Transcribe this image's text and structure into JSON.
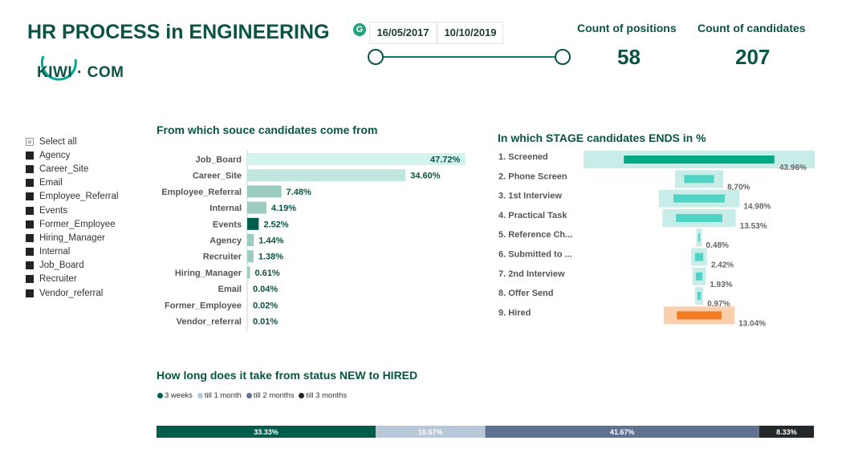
{
  "header": {
    "title": "HR PROCESS in ENGINEERING",
    "logo_text": "KIWI · COM",
    "grammarly_glyph": "G"
  },
  "date_filter": {
    "start": "16/05/2017",
    "end": "10/10/2019"
  },
  "kpis": {
    "positions_label": "Count of positions",
    "positions_value": "58",
    "candidates_label": "Count of candidates",
    "candidates_value": "207"
  },
  "slicer": {
    "items": [
      "Select all",
      "Agency",
      "Career_Site",
      "Email",
      "Employee_Referral",
      "Events",
      "Former_Employee",
      "Hiring_Manager",
      "Internal",
      "Job_Board",
      "Recruiter",
      "Vendor_referral"
    ]
  },
  "colors": {
    "dark_green": "#005d4b",
    "mid_teal": "#9bcbc1",
    "light_teal": "#bfe6df",
    "lightest_teal": "#d3f3ee",
    "funnel_light": "#9addd3",
    "funnel_dark": "#00a884",
    "funnel_mid": "#4fd3c4",
    "hired": "#f47b20",
    "hired_light": "#f9b98a",
    "stack_light": "#b9c8d8",
    "stack_slate": "#5f7290",
    "stack_black": "#22272a"
  },
  "chart_data": [
    {
      "type": "bar",
      "orientation": "horizontal",
      "title": "From which souce candidates come from",
      "categories": [
        "Job_Board",
        "Career_Site",
        "Employee_Referral",
        "Internal",
        "Events",
        "Agency",
        "Recruiter",
        "Hiring_Manager",
        "Email",
        "Former_Employee",
        "Vendor_referral"
      ],
      "values": [
        47.72,
        34.6,
        7.48,
        4.19,
        2.52,
        1.44,
        1.38,
        0.61,
        0.04,
        0.02,
        0.01
      ],
      "labels": [
        "47.72%",
        "34.60%",
        "7.48%",
        "4.19%",
        "2.52%",
        "1.44%",
        "1.38%",
        "0.61%",
        "0.04%",
        "0.02%",
        "0.01%"
      ],
      "unit": "%"
    },
    {
      "type": "bar",
      "orientation": "horizontal-funnel",
      "title": "In which STAGE candidates ENDS in %",
      "categories": [
        "1. Screened",
        "2. Phone Screen",
        "3. 1st Interview",
        "4. Practical Task",
        "5. Reference Ch...",
        "6. Submitted to ...",
        "7. 2nd Interview",
        "8. Offer Send",
        "9. Hired"
      ],
      "values": [
        43.96,
        8.7,
        14.98,
        13.53,
        0.48,
        2.42,
        1.93,
        0.97,
        13.04
      ],
      "labels": [
        "43.96%",
        "8.70%",
        "14.98%",
        "13.53%",
        "0.48%",
        "2.42%",
        "1.93%",
        "0.97%",
        "13.04%"
      ],
      "unit": "%"
    },
    {
      "type": "bar",
      "orientation": "stacked-100",
      "title": "How long does it take from status NEW to HIRED",
      "series": [
        {
          "name": "3 weeks",
          "value": 33.33,
          "label": "33.33%"
        },
        {
          "name": "till 1 month",
          "value": 16.67,
          "label": "16.67%"
        },
        {
          "name": "till 2 months",
          "value": 41.67,
          "label": "41.67%"
        },
        {
          "name": "till 3 months",
          "value": 8.33,
          "label": "8.33%"
        }
      ],
      "legend_position": "top-left"
    }
  ]
}
